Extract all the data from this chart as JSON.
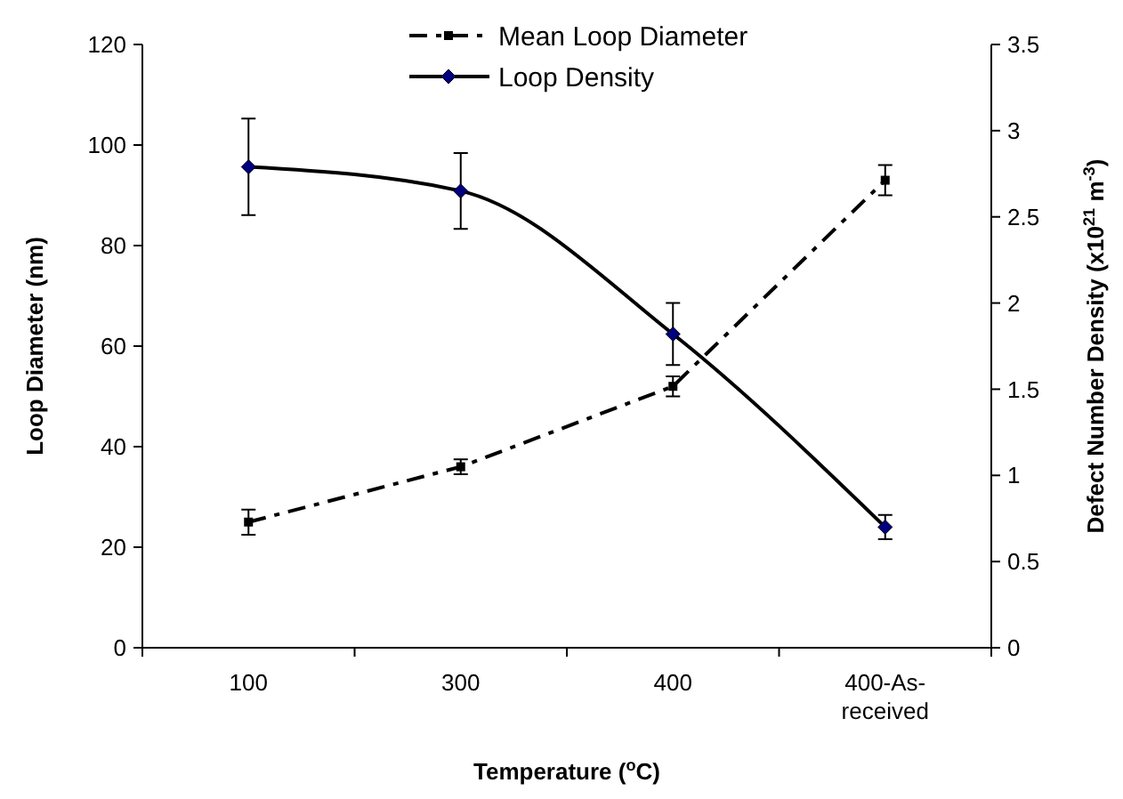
{
  "chart_data": {
    "type": "line",
    "categories": [
      "100",
      "300",
      "400",
      "400-As-received"
    ],
    "xlabel": "Temperature ($^{o}$C)",
    "ylabel": "Loop Diameter (nm)",
    "y2label": "Defect Number Density (x10$^{21}$ m$^{-3}$)",
    "ylim": [
      0,
      120
    ],
    "yticks": [
      0,
      20,
      40,
      60,
      80,
      100,
      120
    ],
    "y2lim": [
      0,
      3.5
    ],
    "y2ticks": [
      0,
      0.5,
      1,
      1.5,
      2,
      2.5,
      3,
      3.5
    ],
    "legend": "top",
    "grid": false,
    "series": [
      {
        "name": "Mean Loop Diameter",
        "color": "#000000",
        "values": [
          25,
          36,
          52,
          93
        ],
        "errors": [
          2.5,
          1.5,
          2,
          3
        ],
        "marker": "square",
        "line_style": "dashed"
      },
      {
        "name": "Loop Density",
        "color": "#000000",
        "values": [
          2.79,
          2.65,
          1.82,
          0.7
        ],
        "errors": [
          0.28,
          0.22,
          0.18,
          0.07
        ],
        "marker": "diamond",
        "line_style": "solid",
        "axis": "y2"
      }
    ]
  }
}
